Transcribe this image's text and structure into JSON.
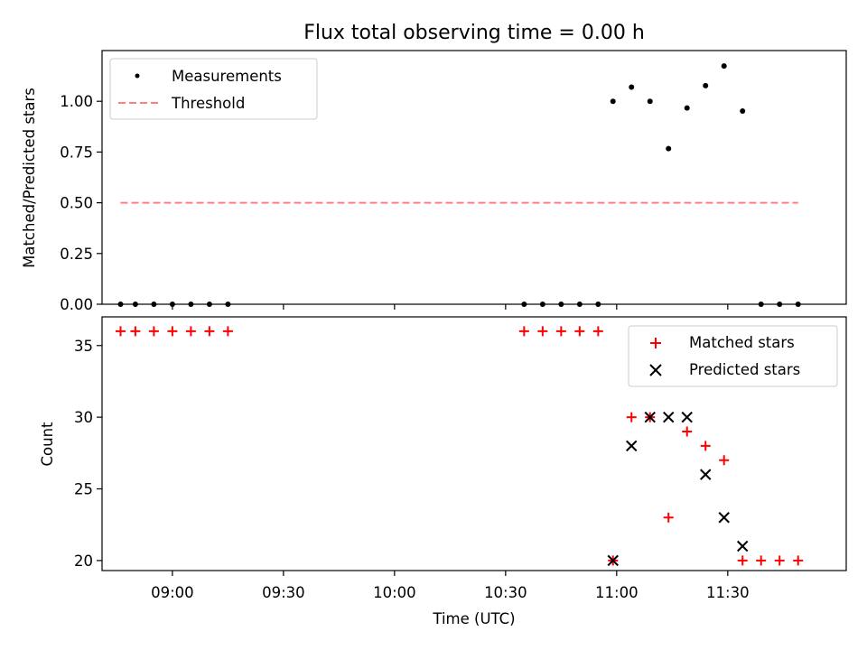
{
  "chart_data": [
    {
      "type": "scatter",
      "title": "Flux total observing time = 0.00 h",
      "ylabel": "Matched/Predicted stars",
      "xlabel": "",
      "xlim": [
        "08:41",
        "12:02"
      ],
      "ylim": [
        0,
        1.25
      ],
      "yticks": [
        0.0,
        0.25,
        0.5,
        0.75,
        1.0
      ],
      "ytick_labels": [
        "0.00",
        "0.25",
        "0.50",
        "0.75",
        "1.00"
      ],
      "legend": "top-left",
      "series": [
        {
          "name": "Measurements",
          "marker": "dot",
          "color": "#000000",
          "x": [
            "08:46",
            "08:50",
            "08:55",
            "09:00",
            "09:05",
            "09:10",
            "09:15",
            "10:35",
            "10:40",
            "10:45",
            "10:50",
            "10:55",
            "10:59",
            "11:04",
            "11:09",
            "11:14",
            "11:19",
            "11:24",
            "11:29",
            "11:34",
            "11:39",
            "11:44",
            "11:49"
          ],
          "y": [
            0,
            0,
            0,
            0,
            0,
            0,
            0,
            0,
            0,
            0,
            0,
            0,
            1.0,
            1.07,
            1.0,
            0.767,
            0.967,
            1.077,
            1.174,
            0.952,
            0,
            0,
            0
          ]
        },
        {
          "name": "Threshold",
          "style": "dashed",
          "color": "#ff7f7f",
          "x": [
            "08:46",
            "11:49"
          ],
          "y": [
            0.5,
            0.5
          ]
        }
      ]
    },
    {
      "type": "scatter",
      "title": "",
      "ylabel": "Count",
      "xlabel": "Time (UTC)",
      "xlim": [
        "08:41",
        "12:02"
      ],
      "ylim": [
        19.3,
        37
      ],
      "yticks": [
        20,
        25,
        30,
        35
      ],
      "ytick_labels": [
        "20",
        "25",
        "30",
        "35"
      ],
      "xticks": [
        "09:00",
        "09:30",
        "10:00",
        "10:30",
        "11:00",
        "11:30"
      ],
      "legend": "top-right",
      "series": [
        {
          "name": "Matched stars",
          "marker": "plus",
          "color": "#ff0000",
          "x": [
            "08:46",
            "08:50",
            "08:55",
            "09:00",
            "09:05",
            "09:10",
            "09:15",
            "10:35",
            "10:40",
            "10:45",
            "10:50",
            "10:55",
            "10:59",
            "11:04",
            "11:09",
            "11:14",
            "11:19",
            "11:24",
            "11:29",
            "11:34",
            "11:39",
            "11:44",
            "11:49"
          ],
          "y": [
            36,
            36,
            36,
            36,
            36,
            36,
            36,
            36,
            36,
            36,
            36,
            36,
            20,
            30,
            30,
            23,
            29,
            28,
            27,
            20,
            20,
            20,
            20
          ]
        },
        {
          "name": "Predicted stars",
          "marker": "x",
          "color": "#000000",
          "x": [
            "10:59",
            "11:04",
            "11:09",
            "11:14",
            "11:19",
            "11:24",
            "11:29",
            "11:34"
          ],
          "y": [
            20,
            28,
            30,
            30,
            30,
            26,
            23,
            21
          ]
        }
      ]
    }
  ]
}
